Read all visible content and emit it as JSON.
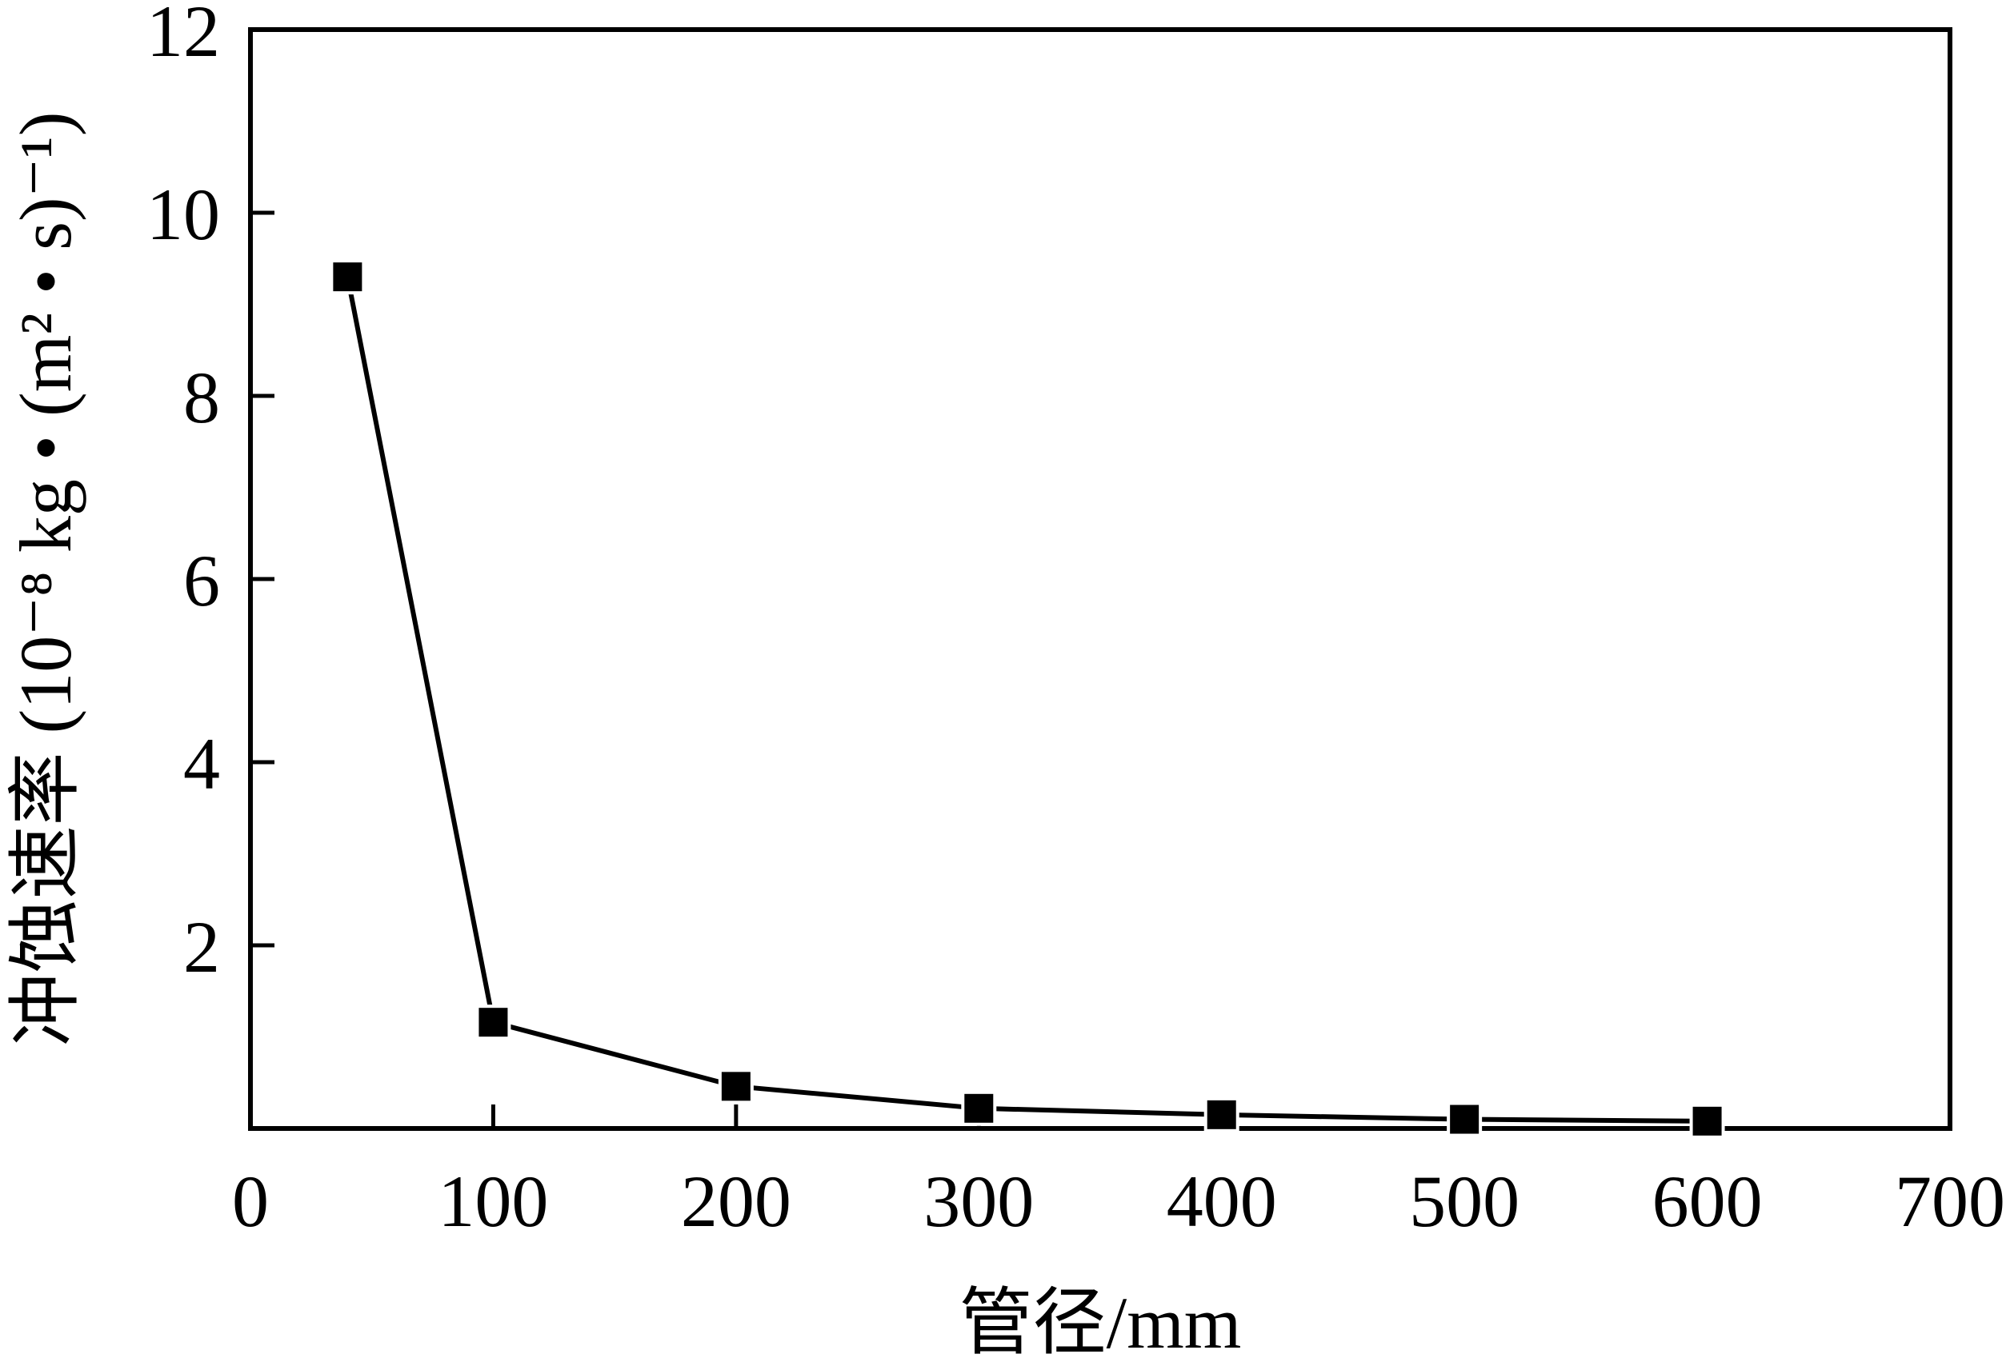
{
  "chart_data": {
    "type": "line",
    "title": "",
    "xlabel": "管径/mm",
    "ylabel": "冲蚀速率 (10⁻⁸ kg • (m² • s)⁻¹)",
    "xlim": [
      0,
      700
    ],
    "ylim": [
      0,
      12
    ],
    "x_ticks": [
      "0",
      "100",
      "200",
      "300",
      "400",
      "500",
      "600",
      "700"
    ],
    "y_ticks": [
      "2",
      "4",
      "6",
      "8",
      "10",
      "12"
    ],
    "x_tick_values": [
      0,
      100,
      200,
      300,
      400,
      500,
      600,
      700
    ],
    "y_tick_values": [
      2,
      4,
      6,
      8,
      10,
      12
    ],
    "grid": false,
    "legend": "none",
    "series": [
      {
        "marker": "square",
        "color": "#000000",
        "x": [
          40,
          100,
          200,
          300,
          400,
          500,
          600
        ],
        "y": [
          9.3,
          1.16,
          0.46,
          0.22,
          0.15,
          0.1,
          0.08
        ]
      }
    ]
  }
}
